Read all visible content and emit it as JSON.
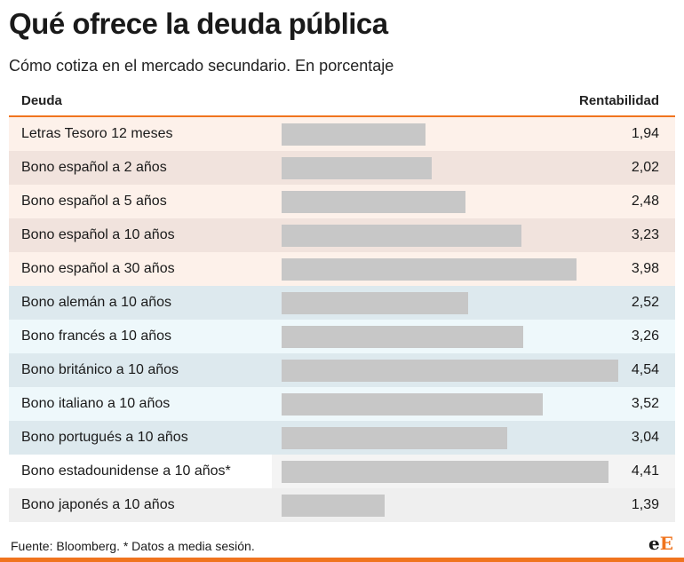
{
  "header": {
    "title": "Qué ofrece la deuda pública",
    "subtitle": "Cómo cotiza en el mercado secundario. En porcentaje"
  },
  "table": {
    "col_left": "Deuda",
    "col_right": "Rentabilidad"
  },
  "colors": {
    "accent": "#f0741e",
    "bar": "#c7c7c7",
    "spain_light": "#fdf1ea",
    "spain_dark": "#f1e3dd",
    "europe_light": "#eef8fb",
    "europe_dark": "#dde9ee",
    "other_light": "#ffffff",
    "other_dark": "#efefef"
  },
  "chart_data": {
    "type": "bar",
    "title": "Qué ofrece la deuda pública",
    "subtitle": "Cómo cotiza en el mercado secundario. En porcentaje",
    "xlabel": "Deuda",
    "ylabel": "Rentabilidad",
    "xlim": [
      0,
      4.54
    ],
    "categories": [
      "Letras Tesoro 12 meses",
      "Bono español a 2 años",
      "Bono español a 5 años",
      "Bono español a 10 años",
      "Bono español a 30 años",
      "Bono alemán a 10 años",
      "Bono francés a 10 años",
      "Bono británico a 10 años",
      "Bono italiano a 10 años",
      "Bono portugués a 10 años",
      "Bono estadounidense a 10 años*",
      "Bono japonés a 10 años"
    ],
    "values": [
      1.94,
      2.02,
      2.48,
      3.23,
      3.98,
      2.52,
      3.26,
      4.54,
      3.52,
      3.04,
      4.41,
      1.39
    ],
    "value_labels": [
      "1,94",
      "2,02",
      "2,48",
      "3,23",
      "3,98",
      "2,52",
      "3,26",
      "4,54",
      "3,52",
      "3,04",
      "4,41",
      "1,39"
    ],
    "groups": [
      "spain",
      "spain",
      "spain",
      "spain",
      "spain",
      "europe",
      "europe",
      "europe",
      "europe",
      "europe",
      "other",
      "other"
    ]
  },
  "footer": {
    "source": "Fuente: Bloomberg. * Datos a media sesión.",
    "logo_lower": "e",
    "logo_upper": "E"
  }
}
